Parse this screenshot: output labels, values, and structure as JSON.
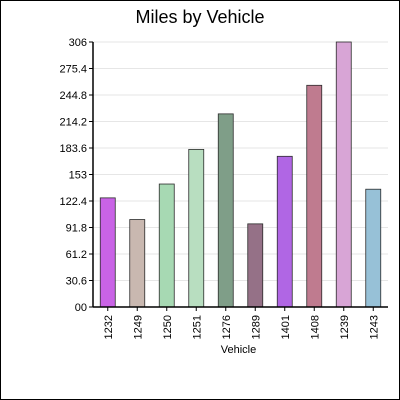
{
  "chart_data": {
    "type": "bar",
    "title": "Miles by Vehicle",
    "xlabel": "Vehicle",
    "ylabel": "",
    "categories": [
      "1232",
      "1249",
      "1250",
      "1251",
      "1276",
      "1289",
      "1401",
      "1408",
      "1239",
      "1243"
    ],
    "values": [
      126,
      101,
      142,
      182,
      223,
      96,
      174,
      256,
      306,
      136
    ],
    "ylim": [
      0,
      306
    ],
    "yticks": [
      "00",
      "30.6",
      "61.2",
      "91.8",
      "122.4",
      "153",
      "183.6",
      "214.2",
      "244.8",
      "275.4",
      "306"
    ],
    "grid": true,
    "legend": "none",
    "colors": [
      "#c963e6",
      "#c9b8b0",
      "#a7d9b3",
      "#b8dec0",
      "#7f9e88",
      "#957187",
      "#b066e4",
      "#bf7b8f",
      "#d8a5d6",
      "#97c1d7"
    ]
  }
}
